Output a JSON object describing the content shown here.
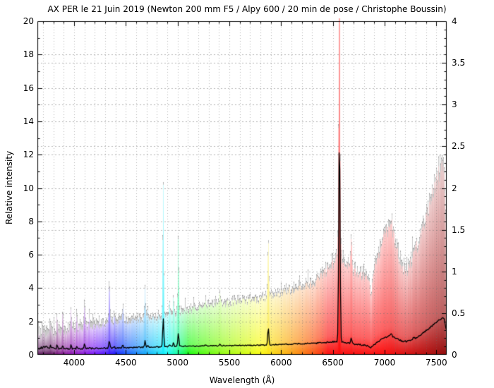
{
  "title": "AX PER le 21 Juin 2019 (Newton 200 mm F5 / Alpy 600 / 20 min de pose / Christophe Boussin)",
  "chart_data": {
    "type": "area",
    "title": "AX PER le 21 Juin 2019 (Newton 200 mm F5 / Alpy 600 / 20 min de pose / Christophe Boussin)",
    "xlabel": "Wavelength (Å)",
    "ylabel_left": "Relative intensity",
    "x_range": [
      3645,
      7600
    ],
    "y_left_range": [
      0,
      20
    ],
    "y_right_range": [
      0,
      4
    ],
    "grid": {
      "x_minor_step_angstrom": 100,
      "h_gridlines_left_units": [
        2,
        2.5,
        4,
        5,
        6,
        7.5,
        8,
        10,
        12,
        12.5,
        14,
        15,
        16,
        17.5,
        18
      ]
    },
    "x_ticks": [
      {
        "v": 4000,
        "label": "4000"
      },
      {
        "v": 4500,
        "label": "4500"
      },
      {
        "v": 5000,
        "label": "5000"
      },
      {
        "v": 5500,
        "label": "5500"
      },
      {
        "v": 6000,
        "label": "6000"
      },
      {
        "v": 6500,
        "label": "6500"
      },
      {
        "v": 7000,
        "label": "7000"
      },
      {
        "v": 7500,
        "label": "7500"
      }
    ],
    "y_left_ticks": [
      {
        "v": 0,
        "label": "0"
      },
      {
        "v": 2,
        "label": "2"
      },
      {
        "v": 4,
        "label": "4"
      },
      {
        "v": 6,
        "label": "6"
      },
      {
        "v": 8,
        "label": "8"
      },
      {
        "v": 10,
        "label": "10"
      },
      {
        "v": 12,
        "label": "12"
      },
      {
        "v": 14,
        "label": "14"
      },
      {
        "v": 16,
        "label": "16"
      },
      {
        "v": 18,
        "label": "18"
      },
      {
        "v": 20,
        "label": "20"
      }
    ],
    "y_right_ticks": [
      {
        "v": 0,
        "label": "0"
      },
      {
        "v": 0.5,
        "label": "0.5"
      },
      {
        "v": 1,
        "label": "1"
      },
      {
        "v": 1.5,
        "label": "1.5"
      },
      {
        "v": 2,
        "label": "2"
      },
      {
        "v": 2.5,
        "label": "2.5"
      },
      {
        "v": 3,
        "label": "3"
      },
      {
        "v": 3.5,
        "label": "3.5"
      },
      {
        "v": 4,
        "label": "4"
      }
    ],
    "series": {
      "colored_spectrum_continuum": [
        [
          3645,
          1.15
        ],
        [
          3700,
          1.25
        ],
        [
          3800,
          1.3
        ],
        [
          3900,
          1.35
        ],
        [
          4000,
          1.5
        ],
        [
          4200,
          1.7
        ],
        [
          4400,
          1.9
        ],
        [
          4600,
          2.05
        ],
        [
          4800,
          2.2
        ],
        [
          5000,
          2.5
        ],
        [
          5200,
          2.75
        ],
        [
          5400,
          3.0
        ],
        [
          5600,
          3.15
        ],
        [
          5800,
          3.3
        ],
        [
          6000,
          3.7
        ],
        [
          6150,
          3.95
        ],
        [
          6300,
          4.25
        ],
        [
          6420,
          4.8
        ],
        [
          6500,
          5.4
        ],
        [
          6560,
          6.0
        ],
        [
          6620,
          5.3
        ],
        [
          6700,
          4.95
        ],
        [
          6800,
          4.7
        ],
        [
          6869,
          4.3
        ],
        [
          6920,
          5.4
        ],
        [
          6990,
          7.0
        ],
        [
          7040,
          7.6
        ],
        [
          7090,
          7.0
        ],
        [
          7160,
          5.2
        ],
        [
          7220,
          5.0
        ],
        [
          7300,
          6.2
        ],
        [
          7380,
          7.8
        ],
        [
          7450,
          9.3
        ],
        [
          7520,
          10.8
        ],
        [
          7600,
          11.6
        ]
      ],
      "gray_envelope_noise_amplitude": [
        [
          3645,
          0.9
        ],
        [
          3800,
          0.75
        ],
        [
          4000,
          0.55
        ],
        [
          4300,
          0.5
        ],
        [
          4600,
          0.4
        ],
        [
          5000,
          0.32
        ],
        [
          5400,
          0.3
        ],
        [
          5800,
          0.32
        ],
        [
          6200,
          0.35
        ],
        [
          6600,
          0.45
        ],
        [
          7000,
          0.5
        ],
        [
          7300,
          0.55
        ],
        [
          7600,
          0.7
        ]
      ],
      "black_raw_spectrum": [
        [
          3645,
          0.38
        ],
        [
          3720,
          0.48
        ],
        [
          3800,
          0.4
        ],
        [
          3900,
          0.36
        ],
        [
          4000,
          0.36
        ],
        [
          4150,
          0.38
        ],
        [
          4300,
          0.4
        ],
        [
          4450,
          0.42
        ],
        [
          4600,
          0.44
        ],
        [
          4750,
          0.46
        ],
        [
          4900,
          0.5
        ],
        [
          5050,
          0.52
        ],
        [
          5200,
          0.53
        ],
        [
          5350,
          0.54
        ],
        [
          5500,
          0.55
        ],
        [
          5650,
          0.57
        ],
        [
          5800,
          0.58
        ],
        [
          5950,
          0.62
        ],
        [
          6100,
          0.65
        ],
        [
          6250,
          0.68
        ],
        [
          6400,
          0.72
        ],
        [
          6520,
          0.8
        ],
        [
          6600,
          0.75
        ],
        [
          6700,
          0.65
        ],
        [
          6800,
          0.58
        ],
        [
          6869,
          0.5
        ],
        [
          6930,
          0.75
        ],
        [
          7000,
          1.05
        ],
        [
          7050,
          1.12
        ],
        [
          7100,
          1.05
        ],
        [
          7170,
          0.8
        ],
        [
          7230,
          0.82
        ],
        [
          7300,
          1.0
        ],
        [
          7380,
          1.35
        ],
        [
          7450,
          1.7
        ],
        [
          7520,
          2.05
        ],
        [
          7600,
          2.3
        ]
      ],
      "emission_lines": [
        {
          "wl": 3771,
          "amp": 0.7,
          "w": 6,
          "bk": 0.12
        },
        {
          "wl": 3835,
          "amp": 0.9,
          "w": 6,
          "bk": 0.18
        },
        {
          "wl": 3889,
          "amp": 1.3,
          "w": 6,
          "bk": 0.22
        },
        {
          "wl": 3970,
          "amp": 1.5,
          "w": 6,
          "bk": 0.28
        },
        {
          "wl": 4026,
          "amp": 0.8,
          "w": 6,
          "bk": 0.12
        },
        {
          "wl": 4101,
          "amp": 1.6,
          "w": 7,
          "bk": 0.35
        },
        {
          "wl": 4144,
          "amp": 0.5,
          "w": 6,
          "bk": 0.08
        },
        {
          "wl": 4340,
          "amp": 2.7,
          "w": 7,
          "bk": 0.5
        },
        {
          "wl": 4388,
          "amp": 0.6,
          "w": 6,
          "bk": 0.1
        },
        {
          "wl": 4471,
          "amp": 1.1,
          "w": 6,
          "bk": 0.18
        },
        {
          "wl": 4686,
          "amp": 1.7,
          "w": 7,
          "bk": 0.4
        },
        {
          "wl": 4713,
          "amp": 0.5,
          "w": 6,
          "bk": 0.08
        },
        {
          "wl": 4861,
          "amp": 8.2,
          "w": 7.5,
          "bk": 1.68
        },
        {
          "wl": 4922,
          "amp": 0.7,
          "w": 6,
          "bk": 0.12
        },
        {
          "wl": 4959,
          "amp": 1.0,
          "w": 6,
          "bk": 0.25
        },
        {
          "wl": 5007,
          "amp": 4.6,
          "w": 7,
          "bk": 0.82
        },
        {
          "wl": 5270,
          "amp": 0.5,
          "w": 7,
          "bk": 0.08
        },
        {
          "wl": 5411,
          "amp": 0.7,
          "w": 7,
          "bk": 0.12
        },
        {
          "wl": 5876,
          "amp": 3.6,
          "w": 8,
          "bk": 1.0
        },
        {
          "wl": 6563,
          "amp": 25,
          "w": 9,
          "bk": 12.55
        },
        {
          "wl": 6678,
          "amp": 1.9,
          "w": 8,
          "bk": 0.32
        },
        {
          "wl": 7065,
          "amp": 0.8,
          "w": 9,
          "bk": 0.18
        },
        {
          "wl": 7281,
          "amp": 0.6,
          "w": 9,
          "bk": 0.1
        }
      ],
      "telluric_absorptions": [
        {
          "wl": 6869,
          "depth": 0.14,
          "w": 11
        },
        {
          "wl": 7594,
          "depth": 0.32,
          "w": 13
        },
        {
          "wl": 7620,
          "depth": 0.22,
          "w": 15
        }
      ]
    },
    "colors": {
      "gray_fill": "#c9c9c9",
      "gray_edge": "#999999",
      "black_line": "#000000",
      "grid": "rgba(110,110,110,0.5)",
      "frame": "#000000",
      "background": "#ffffff"
    }
  }
}
